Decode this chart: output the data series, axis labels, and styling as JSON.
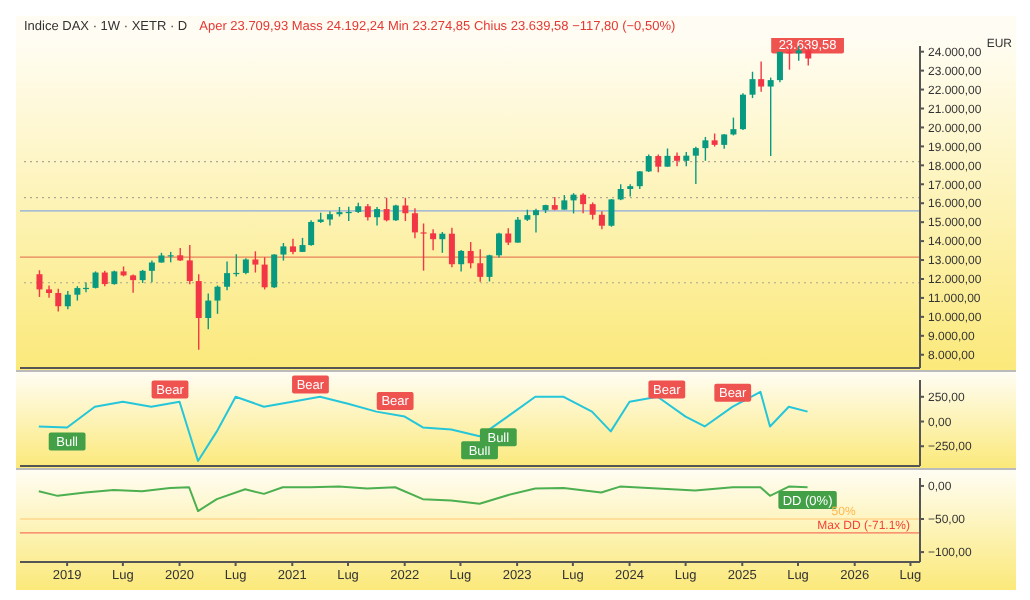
{
  "chart_data": [
    {
      "type": "candlestick",
      "title": "Indice DAX · 1W · XETR · D",
      "subtitle": "Aper 23.709,93  Mass 24.192,24  Min 23.274,85  Chius 23.639,58 −117,80 (−0,50%)",
      "ylabel": "EUR",
      "tick_labels": "y",
      "x": [
        "2018-10",
        "2018-11",
        "2018-12",
        "2019-01",
        "2019-02",
        "2019-03",
        "2019-04",
        "2019-05",
        "2019-06",
        "2019-07",
        "2019-08",
        "2019-09",
        "2019-10",
        "2019-11",
        "2019-12",
        "2020-01",
        "2020-02",
        "2020-03",
        "2020-04",
        "2020-05",
        "2020-06",
        "2020-07",
        "2020-08",
        "2020-09",
        "2020-10",
        "2020-11",
        "2020-12",
        "2021-01",
        "2021-02",
        "2021-03",
        "2021-04",
        "2021-05",
        "2021-06",
        "2021-07",
        "2021-08",
        "2021-09",
        "2021-10",
        "2021-11",
        "2021-12",
        "2022-01",
        "2022-02",
        "2022-03",
        "2022-04",
        "2022-05",
        "2022-06",
        "2022-07",
        "2022-08",
        "2022-09",
        "2022-10",
        "2022-11",
        "2022-12",
        "2023-01",
        "2023-02",
        "2023-03",
        "2023-04",
        "2023-05",
        "2023-06",
        "2023-07",
        "2023-08",
        "2023-09",
        "2023-10",
        "2023-11",
        "2023-12",
        "2024-01",
        "2024-02",
        "2024-03",
        "2024-04",
        "2024-05",
        "2024-06",
        "2024-07",
        "2024-08",
        "2024-09",
        "2024-10",
        "2024-11",
        "2024-12",
        "2025-01",
        "2025-02",
        "2025-03",
        "2025-04",
        "2025-05",
        "2025-06",
        "2025-07",
        "2025-08"
      ],
      "ohlc": [
        [
          12250,
          12460,
          11050,
          11450
        ],
        [
          11450,
          11650,
          11010,
          11260
        ],
        [
          11260,
          11480,
          10280,
          10560
        ],
        [
          10560,
          11370,
          10400,
          11170
        ],
        [
          11170,
          11620,
          10860,
          11520
        ],
        [
          11520,
          11820,
          11300,
          11530
        ],
        [
          11530,
          12400,
          11500,
          12340
        ],
        [
          12340,
          12440,
          11620,
          11730
        ],
        [
          11730,
          12440,
          11700,
          12400
        ],
        [
          12400,
          12660,
          12140,
          12190
        ],
        [
          12190,
          12230,
          11270,
          11940
        ],
        [
          11940,
          12480,
          11790,
          12430
        ],
        [
          12430,
          12970,
          11830,
          12870
        ],
        [
          12870,
          13380,
          12860,
          13240
        ],
        [
          13240,
          13430,
          12880,
          13250
        ],
        [
          13250,
          13640,
          12950,
          12980
        ],
        [
          12980,
          13800,
          11720,
          11890
        ],
        [
          11890,
          12250,
          8260,
          9940
        ],
        [
          9940,
          11230,
          9340,
          10860
        ],
        [
          10860,
          11660,
          10160,
          11590
        ],
        [
          11590,
          12920,
          11410,
          12310
        ],
        [
          12310,
          13310,
          12130,
          12320
        ],
        [
          12320,
          13100,
          12250,
          13030
        ],
        [
          13030,
          13460,
          12340,
          12760
        ],
        [
          12760,
          13150,
          11450,
          11560
        ],
        [
          11560,
          13310,
          11530,
          13290
        ],
        [
          13290,
          13900,
          12970,
          13720
        ],
        [
          13720,
          14130,
          13310,
          13430
        ],
        [
          13430,
          14170,
          13420,
          13790
        ],
        [
          13790,
          15100,
          13760,
          15010
        ],
        [
          15010,
          15500,
          14960,
          15140
        ],
        [
          15140,
          15570,
          14820,
          15420
        ],
        [
          15420,
          15800,
          15300,
          15530
        ],
        [
          15530,
          15810,
          15060,
          15540
        ],
        [
          15540,
          16030,
          15480,
          15840
        ],
        [
          15840,
          15960,
          15090,
          15260
        ],
        [
          15260,
          15800,
          14820,
          15690
        ],
        [
          15690,
          16290,
          15040,
          15100
        ],
        [
          15100,
          15920,
          15060,
          15880
        ],
        [
          15880,
          16290,
          15060,
          15470
        ],
        [
          15470,
          15740,
          14150,
          14460
        ],
        [
          14460,
          14930,
          12440,
          14410
        ],
        [
          14410,
          14620,
          13520,
          14100
        ],
        [
          14100,
          14480,
          13380,
          14390
        ],
        [
          14390,
          14710,
          12620,
          12780
        ],
        [
          12780,
          13530,
          12390,
          13480
        ],
        [
          13480,
          13950,
          12560,
          12830
        ],
        [
          12830,
          13570,
          11860,
          12110
        ],
        [
          12110,
          13280,
          11870,
          13250
        ],
        [
          13250,
          14440,
          13130,
          14400
        ],
        [
          14400,
          14680,
          13790,
          13920
        ],
        [
          13920,
          15270,
          13910,
          15130
        ],
        [
          15130,
          15660,
          15060,
          15370
        ],
        [
          15370,
          15710,
          14460,
          15630
        ],
        [
          15630,
          15920,
          15480,
          15900
        ],
        [
          15900,
          16330,
          15630,
          15660
        ],
        [
          15660,
          16430,
          15660,
          16150
        ],
        [
          16150,
          16530,
          15460,
          16450
        ],
        [
          16450,
          16530,
          15470,
          15950
        ],
        [
          15950,
          16040,
          15140,
          15390
        ],
        [
          15390,
          15580,
          14630,
          14810
        ],
        [
          14810,
          16220,
          14760,
          16200
        ],
        [
          16200,
          17000,
          16160,
          16750
        ],
        [
          16750,
          17000,
          16350,
          16900
        ],
        [
          16900,
          17700,
          16750,
          17680
        ],
        [
          17680,
          18570,
          17650,
          18490
        ],
        [
          18490,
          18570,
          17630,
          17930
        ],
        [
          17930,
          18890,
          17920,
          18500
        ],
        [
          18500,
          18680,
          17950,
          18240
        ],
        [
          18240,
          18700,
          17950,
          18510
        ],
        [
          18510,
          18980,
          17020,
          18910
        ],
        [
          18910,
          19500,
          18240,
          19320
        ],
        [
          19320,
          19680,
          18990,
          19080
        ],
        [
          19080,
          19650,
          18880,
          19630
        ],
        [
          19630,
          20520,
          19580,
          19910
        ],
        [
          19910,
          21800,
          19870,
          21730
        ],
        [
          21730,
          22940,
          21550,
          22550
        ],
        [
          22550,
          23480,
          21880,
          22160
        ],
        [
          22160,
          22630,
          18490,
          22500
        ],
        [
          22500,
          24000,
          22390,
          23990
        ],
        [
          23990,
          24480,
          23050,
          23910
        ],
        [
          23910,
          24640,
          23520,
          24070
        ],
        [
          24070,
          24670,
          23270,
          23640
        ]
      ],
      "xlim": [
        "2018-08",
        "2026-08"
      ],
      "ylim": [
        7300,
        24300
      ],
      "yticks": [
        {
          "value": 8000,
          "label": "8.000,00"
        },
        {
          "value": 9000,
          "label": "9.000,00"
        },
        {
          "value": 10000,
          "label": "10.000,00"
        },
        {
          "value": 11000,
          "label": "11.000,00"
        },
        {
          "value": 12000,
          "label": "12.000,00"
        },
        {
          "value": 13000,
          "label": "13.000,00"
        },
        {
          "value": 14000,
          "label": "14.000,00"
        },
        {
          "value": 15000,
          "label": "15.000,00"
        },
        {
          "value": 16000,
          "label": "16.000,00"
        },
        {
          "value": 17000,
          "label": "17.000,00"
        },
        {
          "value": 18000,
          "label": "18.000,00"
        },
        {
          "value": 19000,
          "label": "19.000,00"
        },
        {
          "value": 20000,
          "label": "20.000,00"
        },
        {
          "value": 21000,
          "label": "21.000,00"
        },
        {
          "value": 22000,
          "label": "22.000,00"
        },
        {
          "value": 23000,
          "label": "23.000,00"
        },
        {
          "value": 24000,
          "label": "24.000,00"
        }
      ],
      "ref_lines": [
        {
          "axis": "y",
          "value": 15600,
          "color": "#5b8def"
        },
        {
          "axis": "y",
          "value": 13150,
          "color": "#e0533c"
        },
        {
          "axis": "y",
          "value": 16300,
          "color": "#888888",
          "line_style": "dotted"
        },
        {
          "axis": "y",
          "value": 11800,
          "color": "#888888",
          "line_style": "dotted"
        },
        {
          "axis": "y",
          "value": 18200,
          "color": "#888888",
          "line_style": "dotted"
        }
      ],
      "annotations": [
        {
          "text": "23.639,58",
          "x": "2025-08",
          "y": 23639.58
        }
      ]
    },
    {
      "type": "line",
      "tick_labels": "y",
      "xlim": [
        "2018-08",
        "2026-08"
      ],
      "ylim": [
        -450,
        420
      ],
      "yticks": [
        {
          "value": 250,
          "label": "250,00"
        },
        {
          "value": 0,
          "label": "0,00"
        },
        {
          "value": -250,
          "label": "−250,00"
        }
      ],
      "series": [
        {
          "color": "#26c6da",
          "x": [
            "2018-10",
            "2019-01",
            "2019-04",
            "2019-07",
            "2019-10",
            "2020-01",
            "2020-03",
            "2020-05",
            "2020-07",
            "2020-10",
            "2021-01",
            "2021-04",
            "2021-07",
            "2021-10",
            "2022-01",
            "2022-03",
            "2022-06",
            "2022-09",
            "2022-12",
            "2023-03",
            "2023-06",
            "2023-09",
            "2023-11",
            "2024-01",
            "2024-04",
            "2024-07",
            "2024-09",
            "2024-12",
            "2025-03",
            "2025-04",
            "2025-06",
            "2025-08"
          ],
          "values": [
            -50,
            -60,
            150,
            200,
            150,
            200,
            -400,
            -100,
            250,
            150,
            200,
            250,
            180,
            100,
            50,
            -60,
            -80,
            -150,
            50,
            250,
            250,
            100,
            -100,
            200,
            250,
            50,
            -50,
            150,
            300,
            -50,
            150,
            100
          ]
        }
      ],
      "annotations": [
        {
          "text": "Bull",
          "x": "2019-01",
          "y": -60
        },
        {
          "text": "Bear",
          "x": "2019-12",
          "y": 183
        },
        {
          "text": "Bear",
          "x": "2021-03",
          "y": 233
        },
        {
          "text": "Bear",
          "x": "2021-12",
          "y": 67
        },
        {
          "text": "Bull",
          "x": "2022-09",
          "y": -150
        },
        {
          "text": "Bull",
          "x": "2022-11",
          "y": -17
        },
        {
          "text": "Bear",
          "x": "2024-05",
          "y": 183
        },
        {
          "text": "Bear",
          "x": "2024-12",
          "y": 150
        }
      ]
    },
    {
      "type": "line",
      "xlim": [
        "2018-08",
        "2026-08"
      ],
      "ylim": [
        -115,
        12
      ],
      "xticks": [
        {
          "value": "2019-01",
          "label": "2019"
        },
        {
          "value": "2019-07",
          "label": "Lug"
        },
        {
          "value": "2020-01",
          "label": "2020"
        },
        {
          "value": "2020-07",
          "label": "Lug"
        },
        {
          "value": "2021-01",
          "label": "2021"
        },
        {
          "value": "2021-07",
          "label": "Lug"
        },
        {
          "value": "2022-01",
          "label": "2022"
        },
        {
          "value": "2022-07",
          "label": "Lug"
        },
        {
          "value": "2023-01",
          "label": "2023"
        },
        {
          "value": "2023-07",
          "label": "Lug"
        },
        {
          "value": "2024-01",
          "label": "2024"
        },
        {
          "value": "2024-07",
          "label": "Lug"
        },
        {
          "value": "2025-01",
          "label": "2025"
        },
        {
          "value": "2025-07",
          "label": "Lug"
        },
        {
          "value": "2026-01",
          "label": "2026"
        },
        {
          "value": "2026-07",
          "label": "Lug"
        }
      ],
      "yticks": [
        {
          "value": 0,
          "label": "0,00"
        },
        {
          "value": -50,
          "label": "−50,00"
        },
        {
          "value": -100,
          "label": "−100,00"
        }
      ],
      "series": [
        {
          "color": "#4caf50",
          "x": [
            "2018-10",
            "2018-12",
            "2019-03",
            "2019-06",
            "2019-09",
            "2019-12",
            "2020-02",
            "2020-03",
            "2020-05",
            "2020-08",
            "2020-10",
            "2020-12",
            "2021-03",
            "2021-06",
            "2021-09",
            "2021-12",
            "2022-03",
            "2022-06",
            "2022-09",
            "2022-12",
            "2023-03",
            "2023-06",
            "2023-10",
            "2023-12",
            "2024-04",
            "2024-08",
            "2024-12",
            "2025-03",
            "2025-04",
            "2025-06",
            "2025-08"
          ],
          "values": [
            -8,
            -15,
            -10,
            -6,
            -8,
            -3,
            -2,
            -38,
            -20,
            -5,
            -12,
            -2,
            -2,
            -1,
            -4,
            -2,
            -20,
            -22,
            -27,
            -14,
            -4,
            -3,
            -10,
            -1,
            -4,
            -7,
            -2,
            -2,
            -15,
            -1,
            -2
          ]
        }
      ],
      "ref_lines": [
        {
          "axis": "y",
          "value": -50,
          "color": "#ffb74d"
        },
        {
          "axis": "y",
          "value": -71.1,
          "label": "Max DD (-71.1%)",
          "color": "#f44336"
        }
      ],
      "annotations": [
        {
          "text": "DD (0%)",
          "x": "2025-08",
          "y": 0
        },
        {
          "text": "50%",
          "x": "2025-08",
          "y": -50
        }
      ]
    }
  ]
}
